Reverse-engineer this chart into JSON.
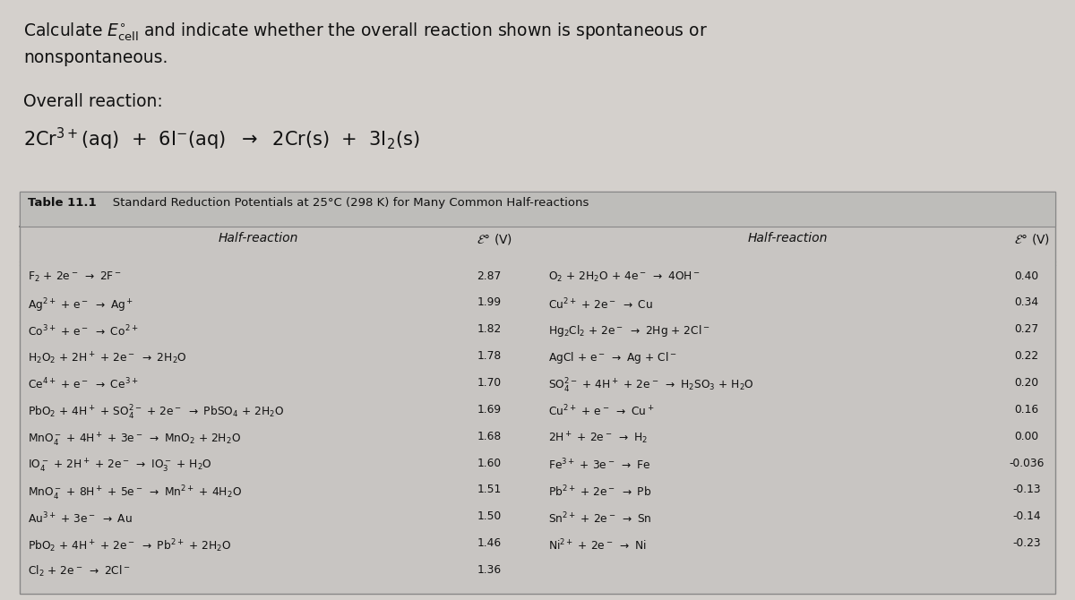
{
  "bg_color": "#d4d0cc",
  "table_bg": "#c8c5c2",
  "table_border": "#888888",
  "text_color": "#111111",
  "title_line1": "Calculate $E^{\\circ}_{\\mathrm{cell}}$ and indicate whether the overall reaction shown is spontaneous or",
  "title_line2": "nonspontaneous.",
  "overall_label": "Overall reaction:",
  "overall_reaction": "2Cr$^{3+}$(aq)  +  6I$^{-}$(aq)  $\\rightarrow$  2Cr(s)  +  3I$_2$(s)",
  "table_bold": "Table 11.1",
  "table_rest": "   Standard Reduction Potentials at 25°C (298 K) for Many Common Half-reactions",
  "left_reactions": [
    "F$_2$ + 2e$^-$ $\\rightarrow$ 2F$^-$",
    "Ag$^{2+}$ + e$^-$ $\\rightarrow$ Ag$^+$",
    "Co$^{3+}$ + e$^-$ $\\rightarrow$ Co$^{2+}$",
    "H$_2$O$_2$ + 2H$^+$ + 2e$^-$ $\\rightarrow$ 2H$_2$O",
    "Ce$^{4+}$ + e$^-$ $\\rightarrow$ Ce$^{3+}$",
    "PbO$_2$ + 4H$^+$ + SO$_4^{2-}$ + 2e$^-$ $\\rightarrow$ PbSO$_4$ + 2H$_2$O",
    "MnO$_4^-$ + 4H$^+$ + 3e$^-$ $\\rightarrow$ MnO$_2$ + 2H$_2$O",
    "IO$_4^-$ + 2H$^+$ + 2e$^-$ $\\rightarrow$ IO$_3^-$ + H$_2$O",
    "MnO$_4^-$ + 8H$^+$ + 5e$^-$ $\\rightarrow$ Mn$^{2+}$ + 4H$_2$O",
    "Au$^{3+}$ + 3e$^-$ $\\rightarrow$ Au",
    "PbO$_2$ + 4H$^+$ + 2e$^-$ $\\rightarrow$ Pb$^{2+}$ + 2H$_2$O",
    "Cl$_2$ + 2e$^-$ $\\rightarrow$ 2Cl$^-$"
  ],
  "left_values": [
    "2.87",
    "1.99",
    "1.82",
    "1.78",
    "1.70",
    "1.69",
    "1.68",
    "1.60",
    "1.51",
    "1.50",
    "1.46",
    "1.36"
  ],
  "right_reactions": [
    "O$_2$ + 2H$_2$O + 4e$^-$ $\\rightarrow$ 4OH$^-$",
    "Cu$^{2+}$ + 2e$^-$ $\\rightarrow$ Cu",
    "Hg$_2$Cl$_2$ + 2e$^-$ $\\rightarrow$ 2Hg + 2Cl$^-$",
    "AgCl + e$^-$ $\\rightarrow$ Ag + Cl$^-$",
    "SO$_4^{2-}$ + 4H$^+$ + 2e$^-$ $\\rightarrow$ H$_2$SO$_3$ + H$_2$O",
    "Cu$^{2+}$ + e$^-$ $\\rightarrow$ Cu$^+$",
    "2H$^+$ + 2e$^-$ $\\rightarrow$ H$_2$",
    "Fe$^{3+}$ + 3e$^-$ $\\rightarrow$ Fe",
    "Pb$^{2+}$ + 2e$^-$ $\\rightarrow$ Pb",
    "Sn$^{2+}$ + 2e$^-$ $\\rightarrow$ Sn",
    "Ni$^{2+}$ + 2e$^-$ $\\rightarrow$ Ni"
  ],
  "right_values": [
    "0.40",
    "0.34",
    "0.27",
    "0.22",
    "0.20",
    "0.16",
    "0.00",
    "-0.036",
    "-0.13",
    "-0.14",
    "-0.23"
  ],
  "fig_width": 12.0,
  "fig_height": 6.7,
  "dpi": 100
}
